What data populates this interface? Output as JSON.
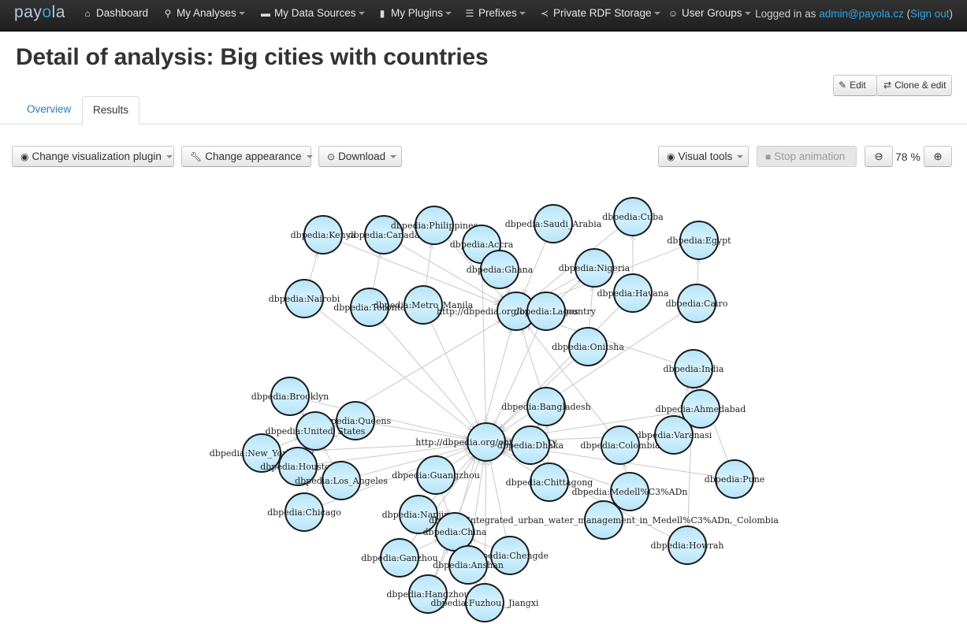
{
  "navbar": {
    "brand": "payola",
    "items": [
      {
        "label": "Dashboard",
        "icon": "home-icon",
        "glyph": "⌂",
        "dropdown": false
      },
      {
        "label": "My Analyses",
        "icon": "search-icon",
        "glyph": "⚲",
        "dropdown": true
      },
      {
        "label": "My Data Sources",
        "icon": "hdd-icon",
        "glyph": "▬",
        "dropdown": true
      },
      {
        "label": "My Plugins",
        "icon": "file-icon",
        "glyph": "▮",
        "dropdown": true
      },
      {
        "label": "Prefixes",
        "icon": "list-icon",
        "glyph": "☰",
        "dropdown": true
      },
      {
        "label": "Private RDF Storage",
        "icon": "share-icon",
        "glyph": "≺",
        "dropdown": true
      },
      {
        "label": "User Groups",
        "icon": "users-icon",
        "glyph": "☺",
        "dropdown": true
      }
    ],
    "login_prefix": "Logged in as ",
    "login_user": "admin@payola.cz",
    "login_open": " (",
    "signout": "Sign out",
    "login_close": ")"
  },
  "page": {
    "title": "Detail of analysis: Big cities with countries",
    "edit_label": "Edit",
    "clone_label": "Clone & edit"
  },
  "tabs": [
    {
      "label": "Overview",
      "active": false
    },
    {
      "label": "Results",
      "active": true
    }
  ],
  "toolbar": {
    "change_plugin": "Change visualization plugin",
    "change_appearance": "Change appearance",
    "download": "Download",
    "visual_tools": "Visual tools",
    "stop_animation": "Stop animation",
    "zoom_value": "78",
    "zoom_unit": " %"
  },
  "graph": {
    "node_fill": "#c6ecfb",
    "node_stroke": "#1a1a1a",
    "edge_color": "#c8c8c8",
    "nodes": [
      {
        "id": "kenya",
        "label": "dbpedia:Kenya"
      },
      {
        "id": "canada",
        "label": "dbpedia:Canada"
      },
      {
        "id": "philippines",
        "label": "dbpedia:Philippines"
      },
      {
        "id": "accra",
        "label": "dbpedia:Accra"
      },
      {
        "id": "saudi",
        "label": "dbpedia:Saudi_Arabia"
      },
      {
        "id": "cuba",
        "label": "dbpedia:Cuba"
      },
      {
        "id": "egypt",
        "label": "dbpedia:Egypt"
      },
      {
        "id": "ghana",
        "label": "dbpedia:Ghana"
      },
      {
        "id": "nigeria",
        "label": "dbpedia:Nigeria"
      },
      {
        "id": "nairobi",
        "label": "dbpedia:Nairobi"
      },
      {
        "id": "toronto",
        "label": "dbpedia:Toronto"
      },
      {
        "id": "manila",
        "label": "dbpedia:Metro_Manila"
      },
      {
        "id": "country",
        "label": "http://dbpedia.org/ontology/Country"
      },
      {
        "id": "lagos",
        "label": "dbpedia:Lagos"
      },
      {
        "id": "havana",
        "label": "dbpedia:Havana"
      },
      {
        "id": "cairo",
        "label": "dbpedia:Cairo"
      },
      {
        "id": "onitsha",
        "label": "dbpedia:Onitsha"
      },
      {
        "id": "india",
        "label": "dbpedia:India"
      },
      {
        "id": "brooklyn",
        "label": "dbpedia:Brooklyn"
      },
      {
        "id": "bangladesh",
        "label": "dbpedia:Bangladesh"
      },
      {
        "id": "ahmedabad",
        "label": "dbpedia:Ahmedabad"
      },
      {
        "id": "queens",
        "label": "dbpedia:Queens"
      },
      {
        "id": "us",
        "label": "dbpedia:United_States"
      },
      {
        "id": "city",
        "label": "http://dbpedia.org/ontology/City"
      },
      {
        "id": "varanasi",
        "label": "dbpedia:Varanasi"
      },
      {
        "id": "dhaka",
        "label": "dbpedia:Dhaka"
      },
      {
        "id": "colombia",
        "label": "dbpedia:Colombia"
      },
      {
        "id": "nyc",
        "label": "dbpedia:New_York_City"
      },
      {
        "id": "houston",
        "label": "dbpedia:Houston"
      },
      {
        "id": "la",
        "label": "dbpedia:Los_Angeles"
      },
      {
        "id": "guangzhou",
        "label": "dbpedia:Guangzhou"
      },
      {
        "id": "chittagong",
        "label": "dbpedia:Chittagong"
      },
      {
        "id": "pune",
        "label": "dbpedia:Pune"
      },
      {
        "id": "medellin",
        "label": "dbpedia:Medell%C3%ADn"
      },
      {
        "id": "chicago",
        "label": "dbpedia:Chicago"
      },
      {
        "id": "nanjing",
        "label": "dbpedia:Nanjing"
      },
      {
        "id": "integrated",
        "label": "dbpedia:Integrated_urban_water_management_in_Medell%C3%ADn,_Colombia"
      },
      {
        "id": "china",
        "label": "dbpedia:China"
      },
      {
        "id": "howrah",
        "label": "dbpedia:Howrah"
      },
      {
        "id": "ganzhou",
        "label": "dbpedia:Ganzhou"
      },
      {
        "id": "chengde",
        "label": "dbpedia:Chengde"
      },
      {
        "id": "anshan",
        "label": "dbpedia:Anshan"
      },
      {
        "id": "hangzhou",
        "label": "dbpedia:Hangzhou"
      },
      {
        "id": "fuzhou",
        "label": "dbpedia:Fuzhou,_Jiangxi"
      }
    ],
    "edges": [
      [
        "kenya",
        "country"
      ],
      [
        "canada",
        "country"
      ],
      [
        "philippines",
        "country"
      ],
      [
        "ghana",
        "country"
      ],
      [
        "saudi",
        "country"
      ],
      [
        "cuba",
        "country"
      ],
      [
        "egypt",
        "country"
      ],
      [
        "nigeria",
        "country"
      ],
      [
        "us",
        "country"
      ],
      [
        "china",
        "country"
      ],
      [
        "india",
        "country"
      ],
      [
        "bangladesh",
        "country"
      ],
      [
        "colombia",
        "country"
      ],
      [
        "nairobi",
        "kenya"
      ],
      [
        "toronto",
        "canada"
      ],
      [
        "manila",
        "philippines"
      ],
      [
        "accra",
        "ghana"
      ],
      [
        "lagos",
        "nigeria"
      ],
      [
        "havana",
        "cuba"
      ],
      [
        "cairo",
        "egypt"
      ],
      [
        "onitsha",
        "nigeria"
      ],
      [
        "brooklyn",
        "us"
      ],
      [
        "queens",
        "us"
      ],
      [
        "nyc",
        "us"
      ],
      [
        "houston",
        "us"
      ],
      [
        "la",
        "us"
      ],
      [
        "chicago",
        "us"
      ],
      [
        "ahmedabad",
        "india"
      ],
      [
        "varanasi",
        "india"
      ],
      [
        "pune",
        "india"
      ],
      [
        "howrah",
        "india"
      ],
      [
        "dhaka",
        "bangladesh"
      ],
      [
        "chittagong",
        "bangladesh"
      ],
      [
        "medellin",
        "colombia"
      ],
      [
        "guangzhou",
        "china"
      ],
      [
        "nanjing",
        "china"
      ],
      [
        "ganzhou",
        "china"
      ],
      [
        "chengde",
        "china"
      ],
      [
        "anshan",
        "china"
      ],
      [
        "hangzhou",
        "china"
      ],
      [
        "fuzhou",
        "china"
      ],
      [
        "integrated",
        "medellin"
      ],
      [
        "nairobi",
        "city"
      ],
      [
        "toronto",
        "city"
      ],
      [
        "manila",
        "city"
      ],
      [
        "accra",
        "city"
      ],
      [
        "lagos",
        "city"
      ],
      [
        "havana",
        "city"
      ],
      [
        "cairo",
        "city"
      ],
      [
        "onitsha",
        "city"
      ],
      [
        "brooklyn",
        "city"
      ],
      [
        "queens",
        "city"
      ],
      [
        "nyc",
        "city"
      ],
      [
        "houston",
        "city"
      ],
      [
        "la",
        "city"
      ],
      [
        "chicago",
        "city"
      ],
      [
        "ahmedabad",
        "city"
      ],
      [
        "varanasi",
        "city"
      ],
      [
        "pune",
        "city"
      ],
      [
        "howrah",
        "city"
      ],
      [
        "dhaka",
        "city"
      ],
      [
        "chittagong",
        "city"
      ],
      [
        "medellin",
        "city"
      ],
      [
        "guangzhou",
        "city"
      ],
      [
        "nanjing",
        "city"
      ],
      [
        "ganzhou",
        "city"
      ],
      [
        "chengde",
        "city"
      ],
      [
        "anshan",
        "city"
      ],
      [
        "hangzhou",
        "city"
      ],
      [
        "fuzhou",
        "city"
      ]
    ]
  }
}
